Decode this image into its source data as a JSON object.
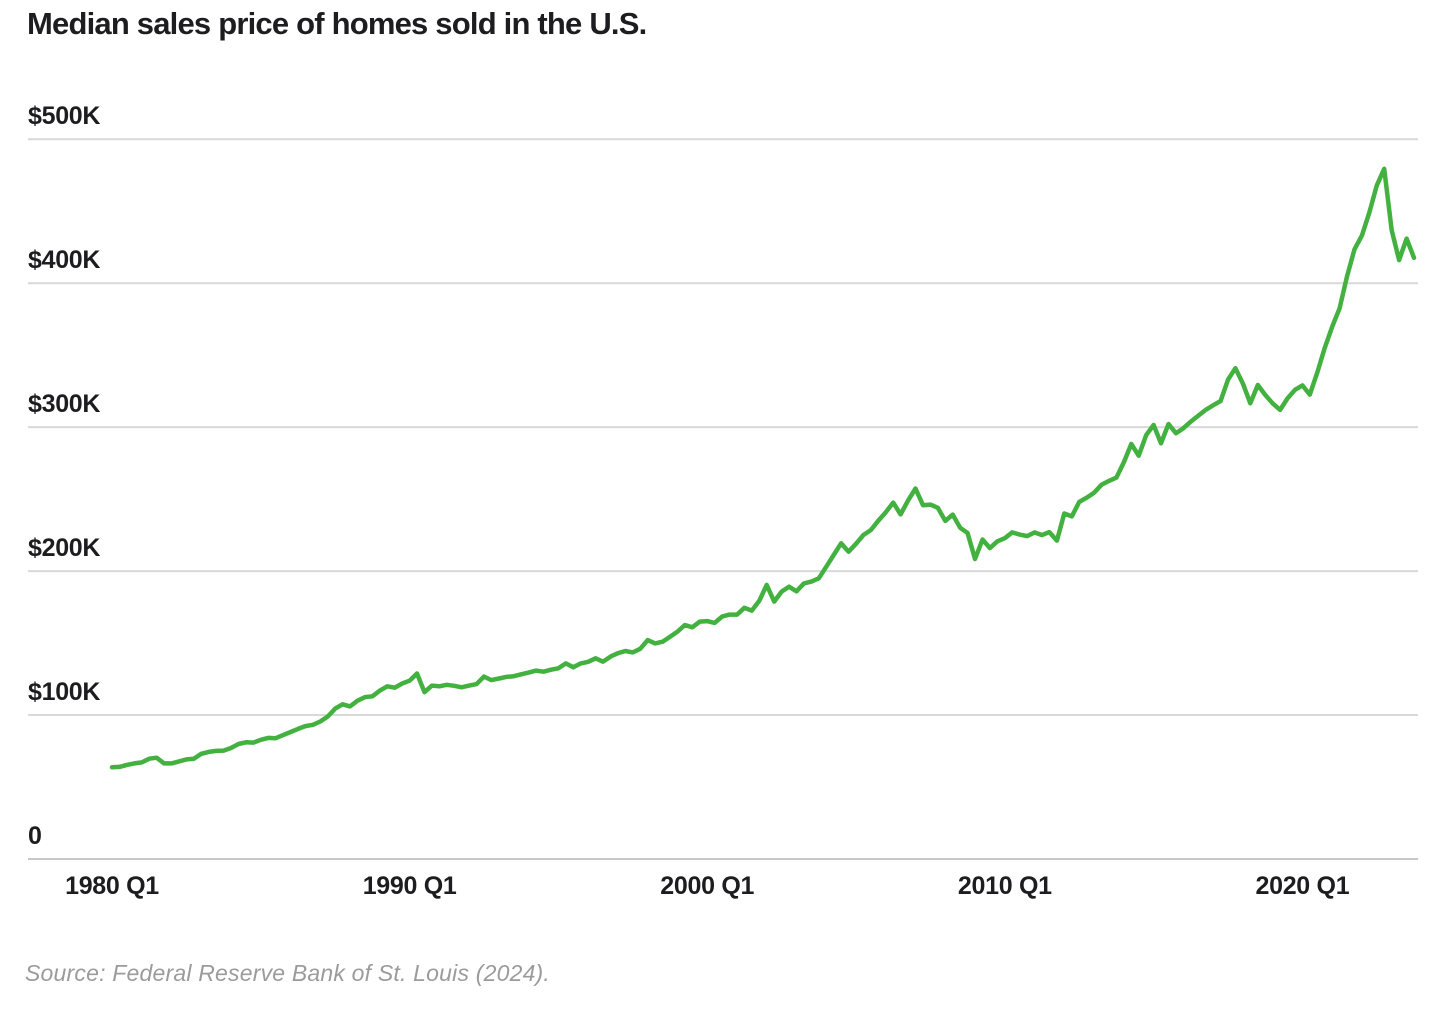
{
  "title": "Median sales price of homes sold in the U.S.",
  "source": "Source: Federal Reserve Bank of St. Louis (2024).",
  "colors": {
    "line": "#43b13f",
    "gridline": "#d9d9d9",
    "baseline": "#c7c7c7",
    "text": "#1d1d1f",
    "source_text": "#9b9b9b"
  },
  "chart_data": {
    "type": "line",
    "title": "Median sales price of homes sold in the U.S.",
    "xlabel": "",
    "ylabel": "",
    "unit": "USD thousands",
    "frequency": "quarterly",
    "x_start": "1980 Q1",
    "x_end": "2023 Q4",
    "ylim": [
      0,
      500
    ],
    "grid": "horizontal",
    "legend": "none",
    "y_ticks": [
      {
        "label": "$500K",
        "value": 500
      },
      {
        "label": "$400K",
        "value": 400
      },
      {
        "label": "$300K",
        "value": 300
      },
      {
        "label": "$200K",
        "value": 200
      },
      {
        "label": "$100K",
        "value": 100
      },
      {
        "label": "0",
        "value": 0
      }
    ],
    "x_ticks": [
      {
        "label": "1980 Q1",
        "quarter_index": 0
      },
      {
        "label": "1990 Q1",
        "quarter_index": 40
      },
      {
        "label": "2000 Q1",
        "quarter_index": 80
      },
      {
        "label": "2010 Q1",
        "quarter_index": 120
      },
      {
        "label": "2020 Q1",
        "quarter_index": 160
      }
    ],
    "series": [
      {
        "name": "Median sales price of homes sold",
        "values_unit": "thousands of dollars",
        "values": [
          63.7,
          64.0,
          65.4,
          66.4,
          67.1,
          69.7,
          70.4,
          66.4,
          66.4,
          67.8,
          69.2,
          69.7,
          73.1,
          74.4,
          75.1,
          75.3,
          77.1,
          79.9,
          81.1,
          80.9,
          82.8,
          84.1,
          83.9,
          86.1,
          88.2,
          90.4,
          92.3,
          93.2,
          95.5,
          99.0,
          104.5,
          107.5,
          106.0,
          110.0,
          112.5,
          113.0,
          117.0,
          120.0,
          119.0,
          121.9,
          123.9,
          128.9,
          115.9,
          120.5,
          120.0,
          121.0,
          120.3,
          119.3,
          120.5,
          121.5,
          126.7,
          124.3,
          125.4,
          126.5,
          127.0,
          128.3,
          129.5,
          130.9,
          130.1,
          131.5,
          132.5,
          135.9,
          133.2,
          135.9,
          137.0,
          139.4,
          137.1,
          140.6,
          143.0,
          144.5,
          143.5,
          146.0,
          152.1,
          149.8,
          151.0,
          154.4,
          157.9,
          162.6,
          161.0,
          164.9,
          165.3,
          164.0,
          168.4,
          169.8,
          169.8,
          174.5,
          172.6,
          179.4,
          190.4,
          178.8,
          185.8,
          189.2,
          186.0,
          191.5,
          192.7,
          195.0,
          203.0,
          211.2,
          219.3,
          213.5,
          219.0,
          225.1,
          228.6,
          235.0,
          240.9,
          247.6,
          239.4,
          249.1,
          257.4,
          245.8,
          246.2,
          244.0,
          234.9,
          239.3,
          230.1,
          226.4,
          208.4,
          222.0,
          216.0,
          220.7,
          222.9,
          226.9,
          225.4,
          224.3,
          226.9,
          225.0,
          227.1,
          221.2,
          240.0,
          238.0,
          248.0,
          251.0,
          254.5,
          260.0,
          262.7,
          265.0,
          275.5,
          288.3,
          280.2,
          294.5,
          301.5,
          288.8,
          302.2,
          295.8,
          299.3,
          303.9,
          308.0,
          312.0,
          315.2,
          318.2,
          333.0,
          341.0,
          330.3,
          316.6,
          329.3,
          322.4,
          316.6,
          312.0,
          320.0,
          326.0,
          329.0,
          322.6,
          338.0,
          355.0,
          369.8,
          382.6,
          404.7,
          423.6,
          433.1,
          449.3,
          468.0,
          479.5,
          436.8,
          416.1,
          431.0,
          417.7
        ]
      }
    ]
  }
}
